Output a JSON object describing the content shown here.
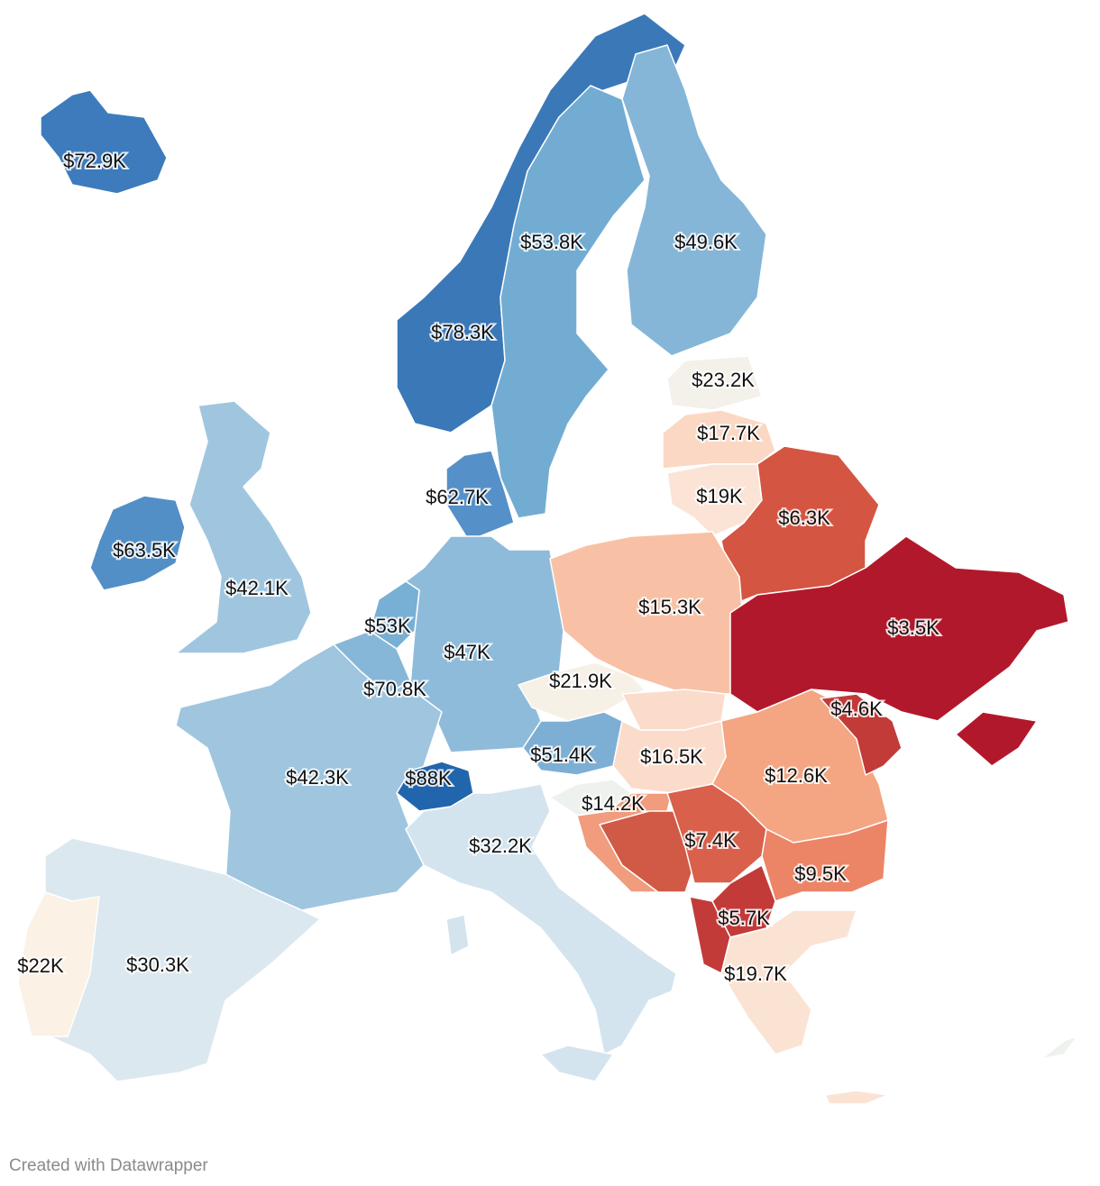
{
  "regions": [
    {
      "label": "$72.9K",
      "color": "#3d7bbd"
    },
    {
      "label": "$78.3K",
      "color": "#3b78b8"
    },
    {
      "label": "$53.8K",
      "color": "#72acd2"
    },
    {
      "label": "$49.6K",
      "color": "#85b6d7"
    },
    {
      "label": "$23.2K",
      "color": "#f3f1ea"
    },
    {
      "label": "$17.7K",
      "color": "#fbd8c4"
    },
    {
      "label": "$19K",
      "color": "#fbe4d6"
    },
    {
      "label": "$6.3K",
      "color": "#d45541"
    },
    {
      "label": "$62.7K",
      "color": "#5590c8"
    },
    {
      "label": "$63.5K",
      "color": "#528fc6"
    },
    {
      "label": "$42.1K",
      "color": "#a0c6df"
    },
    {
      "label": "$53K",
      "color": "#78afd4"
    },
    {
      "label": "$47K",
      "color": "#8fbbdb"
    },
    {
      "label": "$15.3K",
      "color": "#f8c1a6"
    },
    {
      "label": "$3.5K",
      "color": "#b2182b"
    },
    {
      "label": "$70.8K",
      "color": "#86b7d8"
    },
    {
      "label": "$21.9K",
      "color": "#f7f0e6"
    },
    {
      "label": "$4.6K",
      "color": "#c23b39"
    },
    {
      "label": "$42.3K",
      "color": "#9fc5df"
    },
    {
      "label": "$88K",
      "color": "#2166ac"
    },
    {
      "label": "$51.4K",
      "color": "#7dafd4"
    },
    {
      "label": "$16.5K",
      "color": "#fbdcca"
    },
    {
      "label": "$12.6K",
      "color": "#f4a582"
    },
    {
      "label": "$14.2K",
      "color": "#eef2ef"
    },
    {
      "label": "$32.2K",
      "color": "#d3e4ef"
    },
    {
      "label": "$7.4K",
      "color": "#d9604a"
    },
    {
      "label": "$9.5K",
      "color": "#ec8466"
    },
    {
      "label": "$5.7K",
      "color": "#c23b39"
    },
    {
      "label": "$19.7K",
      "color": "#fbe3d4"
    },
    {
      "label": "$30.3K",
      "color": "#dce8ef"
    },
    {
      "label": "$22K",
      "color": "#fbf1e4"
    }
  ],
  "credit": "Created with Datawrapper"
}
